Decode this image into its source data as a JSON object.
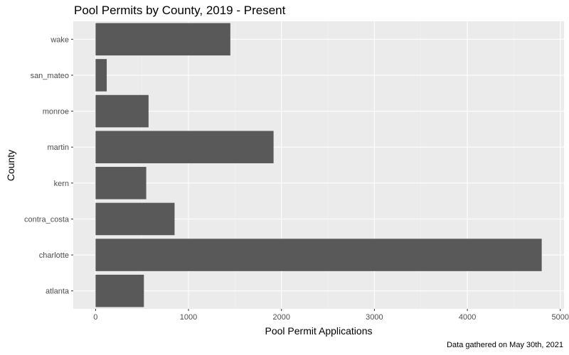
{
  "chart_data": {
    "type": "bar",
    "orientation": "horizontal",
    "title": "Pool Permits by County, 2019 - Present",
    "xlabel": "Pool Permit Applications",
    "ylabel": "County",
    "caption": "Data gathered on May 30th, 2021",
    "categories": [
      "atlanta",
      "charlotte",
      "contra_costa",
      "kern",
      "martin",
      "monroe",
      "san_mateo",
      "wake"
    ],
    "values": [
      520,
      4800,
      850,
      545,
      1915,
      570,
      120,
      1450
    ],
    "xlim": [
      -240,
      5040
    ],
    "xticks": [
      0,
      1000,
      2000,
      3000,
      4000,
      5000
    ],
    "xtick_labels": [
      "0",
      "1000",
      "2000",
      "3000",
      "4000",
      "5000"
    ],
    "grid": true,
    "legend": "none",
    "colors": {
      "bar": "#595959",
      "panel": "#ebebeb",
      "grid_major": "#ffffff",
      "grid_minor": "#f2f2f2",
      "tick_label": "#4d4d4d"
    }
  }
}
